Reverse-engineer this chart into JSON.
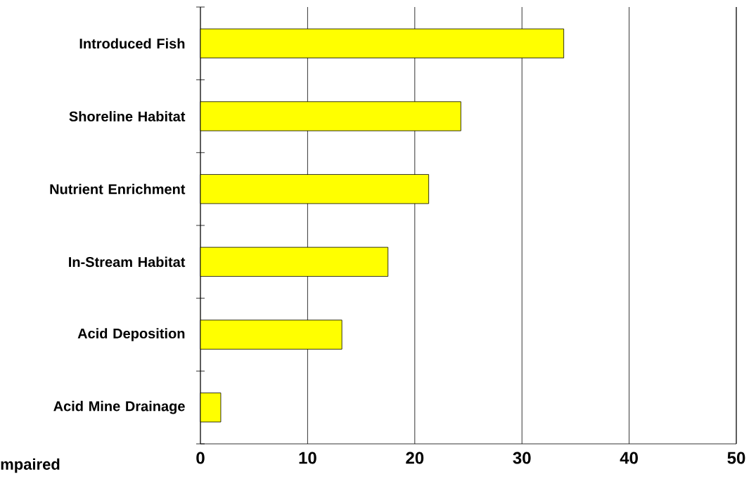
{
  "chart_data": {
    "type": "bar",
    "orientation": "horizontal",
    "xlabel": "mpaired",
    "categories": [
      "Introduced Fish",
      "Shoreline Habitat",
      "Nutrient Enrichment",
      "In-Stream Habitat",
      "Acid Deposition",
      "Acid Mine Drainage"
    ],
    "values": [
      33.9,
      24.3,
      21.3,
      17.5,
      13.2,
      1.9
    ],
    "color": "#ffff00",
    "xlim": [
      0,
      50
    ],
    "xticks": [
      0,
      10,
      20,
      30,
      40,
      50
    ],
    "grid": "x"
  }
}
